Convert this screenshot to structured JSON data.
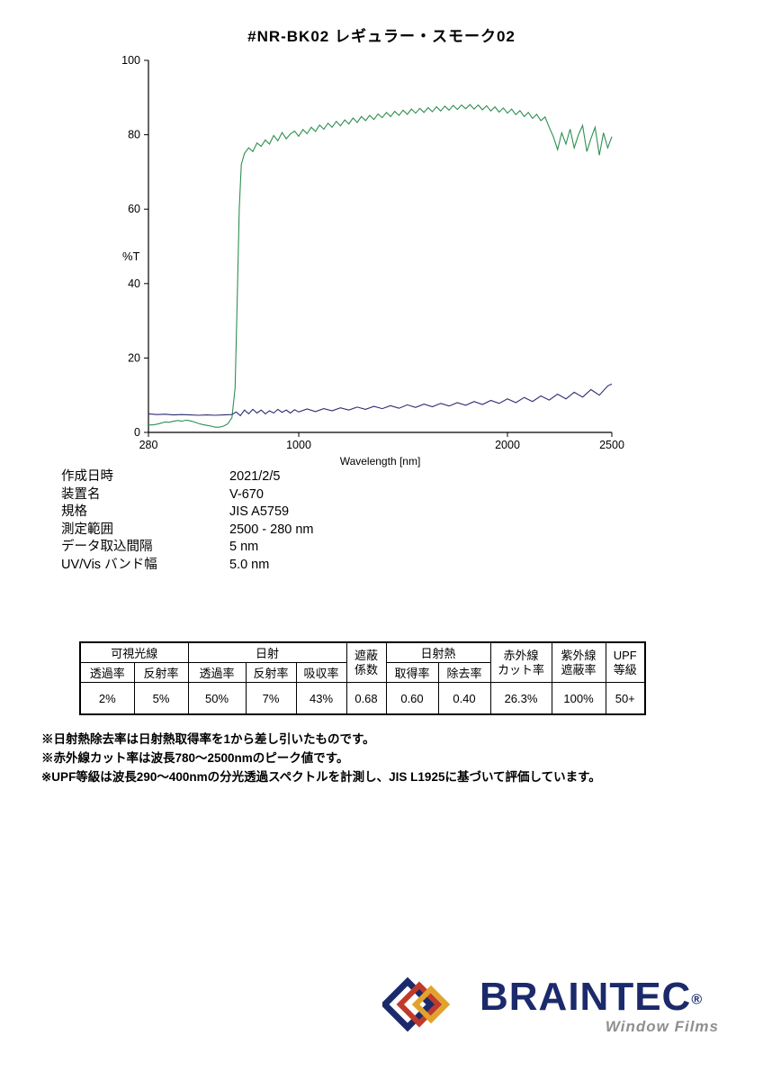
{
  "page": {
    "title": "#NR-BK02  レギュラー・スモーク02"
  },
  "chart_data": {
    "type": "line",
    "title": "",
    "xlabel": "Wavelength [nm]",
    "ylabel": "%T",
    "xlim": [
      280,
      2500
    ],
    "ylim": [
      0,
      100
    ],
    "x_ticks": [
      280,
      1000,
      2000,
      2500
    ],
    "y_ticks": [
      0,
      20,
      40,
      60,
      80,
      100
    ],
    "grid": false,
    "legend": "none",
    "series": [
      {
        "name": "transmittance-spectrum",
        "color": "#2e8f51",
        "x": [
          280,
          300,
          320,
          340,
          360,
          380,
          400,
          420,
          440,
          460,
          480,
          500,
          520,
          540,
          560,
          580,
          600,
          620,
          640,
          660,
          680,
          695,
          705,
          715,
          725,
          740,
          760,
          780,
          800,
          820,
          840,
          860,
          880,
          900,
          920,
          940,
          960,
          980,
          1000,
          1020,
          1040,
          1060,
          1080,
          1100,
          1120,
          1140,
          1160,
          1180,
          1200,
          1220,
          1240,
          1260,
          1280,
          1300,
          1320,
          1340,
          1360,
          1380,
          1400,
          1420,
          1440,
          1460,
          1480,
          1500,
          1520,
          1540,
          1560,
          1580,
          1600,
          1620,
          1640,
          1660,
          1680,
          1700,
          1720,
          1740,
          1760,
          1780,
          1800,
          1820,
          1840,
          1860,
          1880,
          1900,
          1920,
          1940,
          1960,
          1980,
          2000,
          2020,
          2040,
          2060,
          2080,
          2100,
          2120,
          2140,
          2160,
          2180,
          2200,
          2220,
          2240,
          2260,
          2280,
          2300,
          2320,
          2340,
          2360,
          2380,
          2400,
          2420,
          2440,
          2460,
          2480,
          2500
        ],
        "values": [
          2.0,
          2.0,
          2.2,
          2.5,
          2.8,
          2.7,
          3.0,
          3.2,
          3.0,
          3.3,
          3.1,
          2.8,
          2.4,
          2.1,
          1.9,
          1.7,
          1.4,
          1.4,
          1.7,
          2.3,
          4.0,
          12.0,
          35.0,
          60.0,
          72.0,
          75.0,
          76.5,
          75.5,
          77.8,
          76.9,
          78.6,
          77.5,
          79.8,
          78.4,
          80.6,
          78.9,
          80.2,
          81.0,
          79.6,
          81.4,
          80.3,
          82.0,
          80.9,
          82.6,
          81.5,
          83.1,
          82.0,
          83.6,
          82.4,
          84.0,
          82.9,
          84.5,
          83.3,
          84.9,
          83.8,
          85.2,
          84.1,
          85.6,
          84.6,
          86.0,
          84.9,
          86.3,
          85.2,
          86.6,
          85.5,
          86.9,
          85.8,
          87.1,
          86.0,
          87.3,
          86.2,
          87.5,
          86.4,
          87.7,
          86.6,
          87.9,
          86.8,
          88.0,
          87.0,
          88.1,
          86.9,
          88.0,
          86.7,
          87.8,
          86.4,
          87.5,
          86.1,
          87.2,
          85.8,
          86.9,
          85.4,
          86.5,
          84.9,
          86.0,
          84.4,
          85.5,
          83.8,
          84.8,
          82.0,
          79.5,
          76.0,
          80.5,
          77.5,
          81.5,
          76.5,
          80.0,
          82.5,
          75.5,
          79.0,
          82.0,
          74.5,
          80.5,
          76.5,
          79.5
        ]
      },
      {
        "name": "reflectance-spectrum",
        "color": "#2c2c72",
        "x": [
          280,
          320,
          360,
          400,
          440,
          480,
          520,
          560,
          600,
          640,
          680,
          700,
          720,
          740,
          760,
          780,
          800,
          820,
          840,
          860,
          880,
          900,
          920,
          940,
          960,
          980,
          1000,
          1040,
          1080,
          1120,
          1160,
          1200,
          1240,
          1280,
          1320,
          1360,
          1400,
          1440,
          1480,
          1520,
          1560,
          1600,
          1640,
          1680,
          1720,
          1760,
          1800,
          1840,
          1880,
          1920,
          1960,
          2000,
          2040,
          2080,
          2120,
          2160,
          2200,
          2240,
          2280,
          2320,
          2360,
          2400,
          2440,
          2480,
          2500
        ],
        "values": [
          5.0,
          4.8,
          4.9,
          4.7,
          4.8,
          4.7,
          4.6,
          4.7,
          4.6,
          4.7,
          4.8,
          5.5,
          4.5,
          6.0,
          5.0,
          6.2,
          5.2,
          6.0,
          5.0,
          5.8,
          5.2,
          6.2,
          5.4,
          6.0,
          5.2,
          6.1,
          5.5,
          6.3,
          5.6,
          6.4,
          5.8,
          6.6,
          6.0,
          6.8,
          6.2,
          7.0,
          6.4,
          7.2,
          6.5,
          7.4,
          6.7,
          7.6,
          6.9,
          7.8,
          7.1,
          8.0,
          7.3,
          8.3,
          7.5,
          8.6,
          7.8,
          9.0,
          8.0,
          9.4,
          8.3,
          9.8,
          8.7,
          10.3,
          9.0,
          10.8,
          9.5,
          11.5,
          10.0,
          12.5,
          13.0
        ]
      }
    ]
  },
  "metadata": {
    "rows": [
      {
        "label": "作成日時",
        "value": "2021/2/5"
      },
      {
        "label": "装置名",
        "value": "V-670"
      },
      {
        "label": "規格",
        "value": "JIS A5759"
      },
      {
        "label": "測定範囲",
        "value": "2500 - 280 nm"
      },
      {
        "label": "データ取込間隔",
        "value": "5 nm"
      },
      {
        "label": "UV/Vis バンド幅",
        "value": "5.0 nm"
      }
    ]
  },
  "table": {
    "h_visible": "可視光線",
    "h_solar": "日射",
    "h_sc_1": "遮蔽",
    "h_sc_2": "係数",
    "h_heat": "日射熱",
    "h_ir_1": "赤外線",
    "h_ir_2": "カット率",
    "h_uv_1": "紫外線",
    "h_uv_2": "遮蔽率",
    "h_upf_1": "UPF",
    "h_upf_2": "等級",
    "h_vis_trans": "透過率",
    "h_vis_refl": "反射率",
    "h_sol_trans": "透過率",
    "h_sol_refl": "反射率",
    "h_sol_abs": "吸収率",
    "h_heat_gain": "取得率",
    "h_heat_reject": "除去率",
    "v_vis_trans": "2%",
    "v_vis_refl": "5%",
    "v_sol_trans": "50%",
    "v_sol_refl": "7%",
    "v_sol_abs": "43%",
    "v_sc": "0.68",
    "v_heat_gain": "0.60",
    "v_heat_reject": "0.40",
    "v_ir_cut": "26.3%",
    "v_uv_block": "100%",
    "v_upf": "50+"
  },
  "notes": [
    "※日射熱除去率は日射熱取得率を1から差し引いたものです。",
    "※赤外線カット率は波長780～2500nmのピーク値です。",
    "※UPF等級は波長290～400nmの分光透過スペクトルを計測し、JIS L1925に基づいて評価しています。"
  ],
  "logo": {
    "brand": "BRAINTEC",
    "reg": "®",
    "sub": "Window Films"
  }
}
